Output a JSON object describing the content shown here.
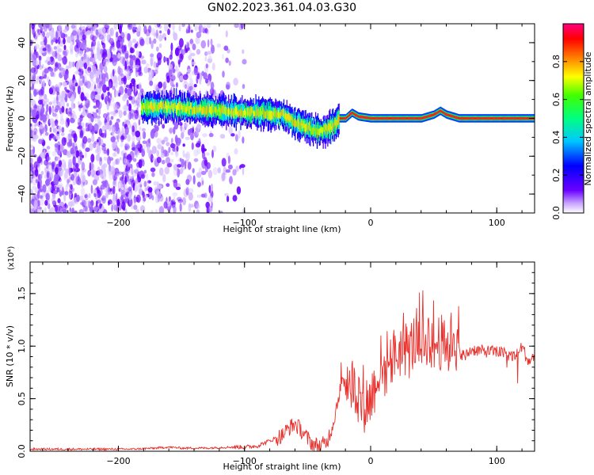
{
  "title": "GN02.2023.361.04.03.G30",
  "chart_data": [
    {
      "type": "heatmap",
      "xlabel": "Height of straight line (km)",
      "ylabel": "Frequency (Hz)",
      "xlim": [
        -270,
        130
      ],
      "ylim": [
        -50,
        50
      ],
      "xticks": [
        -200,
        -100,
        0,
        100
      ],
      "yticks": [
        -40,
        -20,
        0,
        20,
        40
      ],
      "colorbar": {
        "label": "Normalized spectral amplitude",
        "range": [
          0.0,
          1.0
        ],
        "ticks": [
          "0.0",
          "0.2",
          "0.4",
          "0.6",
          "0.8"
        ],
        "colormap": [
          "#ffffff",
          "#6a00ff",
          "#0000ff",
          "#00ffff",
          "#00ff00",
          "#ffff00",
          "#ff8000",
          "#ff0000",
          "#ff0080"
        ]
      },
      "ridge": {
        "x": [
          -180,
          -160,
          -140,
          -120,
          -100,
          -85,
          -70,
          -60,
          -50,
          -40,
          -30,
          -25,
          -20,
          -15,
          -10,
          0,
          20,
          40,
          50,
          55,
          60,
          70,
          100,
          130
        ],
        "frequency": [
          6,
          6,
          5,
          4,
          3,
          3,
          2,
          -2,
          -5,
          -7,
          -4,
          0,
          0,
          3,
          1,
          0,
          0,
          0,
          2,
          4,
          2,
          0,
          0,
          0
        ]
      }
    },
    {
      "type": "line",
      "xlabel": "Height of straight line (km)",
      "ylabel": "SNR (10 * v/v)",
      "y_multiplier": "(x10⁴)",
      "xlim": [
        -270,
        130
      ],
      "ylim": [
        0,
        1.8
      ],
      "xticks": [
        -200,
        -100,
        0,
        100
      ],
      "yticks": [
        "0.0",
        "0.5",
        "1.0",
        "1.5"
      ],
      "series": [
        {
          "color": "#e8302c",
          "x": [
            -270,
            -250,
            -230,
            -210,
            -190,
            -170,
            -160,
            -150,
            -130,
            -110,
            -100,
            -90,
            -80,
            -70,
            -65,
            -60,
            -55,
            -50,
            -45,
            -40,
            -35,
            -30,
            -25,
            -20,
            -15,
            -10,
            -5,
            0,
            5,
            10,
            15,
            20,
            25,
            30,
            35,
            40,
            45,
            50,
            55,
            60,
            65,
            70,
            75,
            80,
            90,
            100,
            110,
            115,
            120,
            125,
            130
          ],
          "y": [
            0.02,
            0.02,
            0.02,
            0.02,
            0.02,
            0.03,
            0.04,
            0.03,
            0.03,
            0.04,
            0.04,
            0.05,
            0.1,
            0.15,
            0.22,
            0.26,
            0.2,
            0.12,
            0.06,
            0.05,
            0.08,
            0.25,
            0.55,
            0.7,
            0.65,
            0.55,
            0.45,
            0.5,
            0.7,
            0.75,
            0.85,
            0.9,
            1.0,
            0.95,
            1.05,
            0.95,
            1.1,
            1.0,
            1.05,
            0.95,
            1.1,
            0.95,
            0.9,
            0.97,
            0.95,
            0.95,
            0.92,
            0.9,
            1.0,
            0.85,
            0.9
          ]
        }
      ]
    }
  ]
}
